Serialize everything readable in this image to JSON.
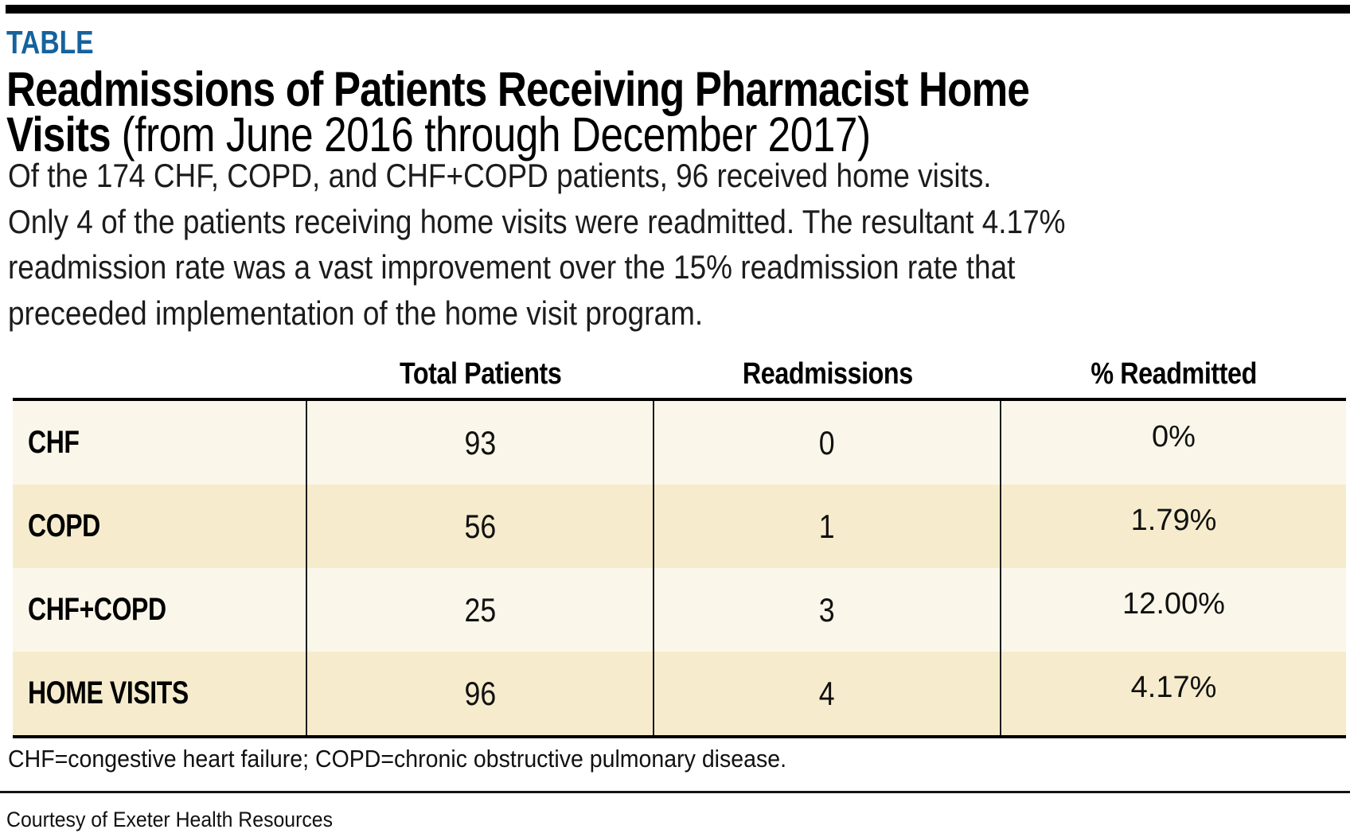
{
  "colors": {
    "accent_blue": "#15629D",
    "row_light": "#FAF7EA",
    "row_dark": "#F6ECCD",
    "border": "#000000"
  },
  "page": {
    "kicker": "TABLE",
    "title_line1": "Readmissions of Patients Receiving Pharmacist Home",
    "title_line2_bold": "Visits",
    "title_line2_regular": " (from June 2016 through December 2017)",
    "description_lines": [
      "Of the 174 CHF, COPD, and CHF+COPD patients, 96 received home visits.",
      "Only 4 of the patients receiving home visits were readmitted. The resultant 4.17%",
      "readmission rate was a vast improvement over the 15% readmission rate that",
      "preceeded implementation of the home visit program."
    ],
    "footnote": "CHF=congestive heart failure; COPD=chronic obstructive pulmonary disease.",
    "credit": "Courtesy of Exeter Health Resources"
  },
  "table": {
    "columns": [
      "",
      "Total Patients",
      "Readmissions",
      "% Readmitted"
    ],
    "rows": [
      {
        "label": "CHF",
        "total_patients": "93",
        "readmissions": "0",
        "pct_readmitted": "0%"
      },
      {
        "label": "COPD",
        "total_patients": "56",
        "readmissions": "1",
        "pct_readmitted": "1.79%"
      },
      {
        "label": "CHF+COPD",
        "total_patients": "25",
        "readmissions": "3",
        "pct_readmitted": "12.00%"
      },
      {
        "label": "HOME VISITS",
        "total_patients": "96",
        "readmissions": "4",
        "pct_readmitted": "4.17%"
      }
    ]
  }
}
